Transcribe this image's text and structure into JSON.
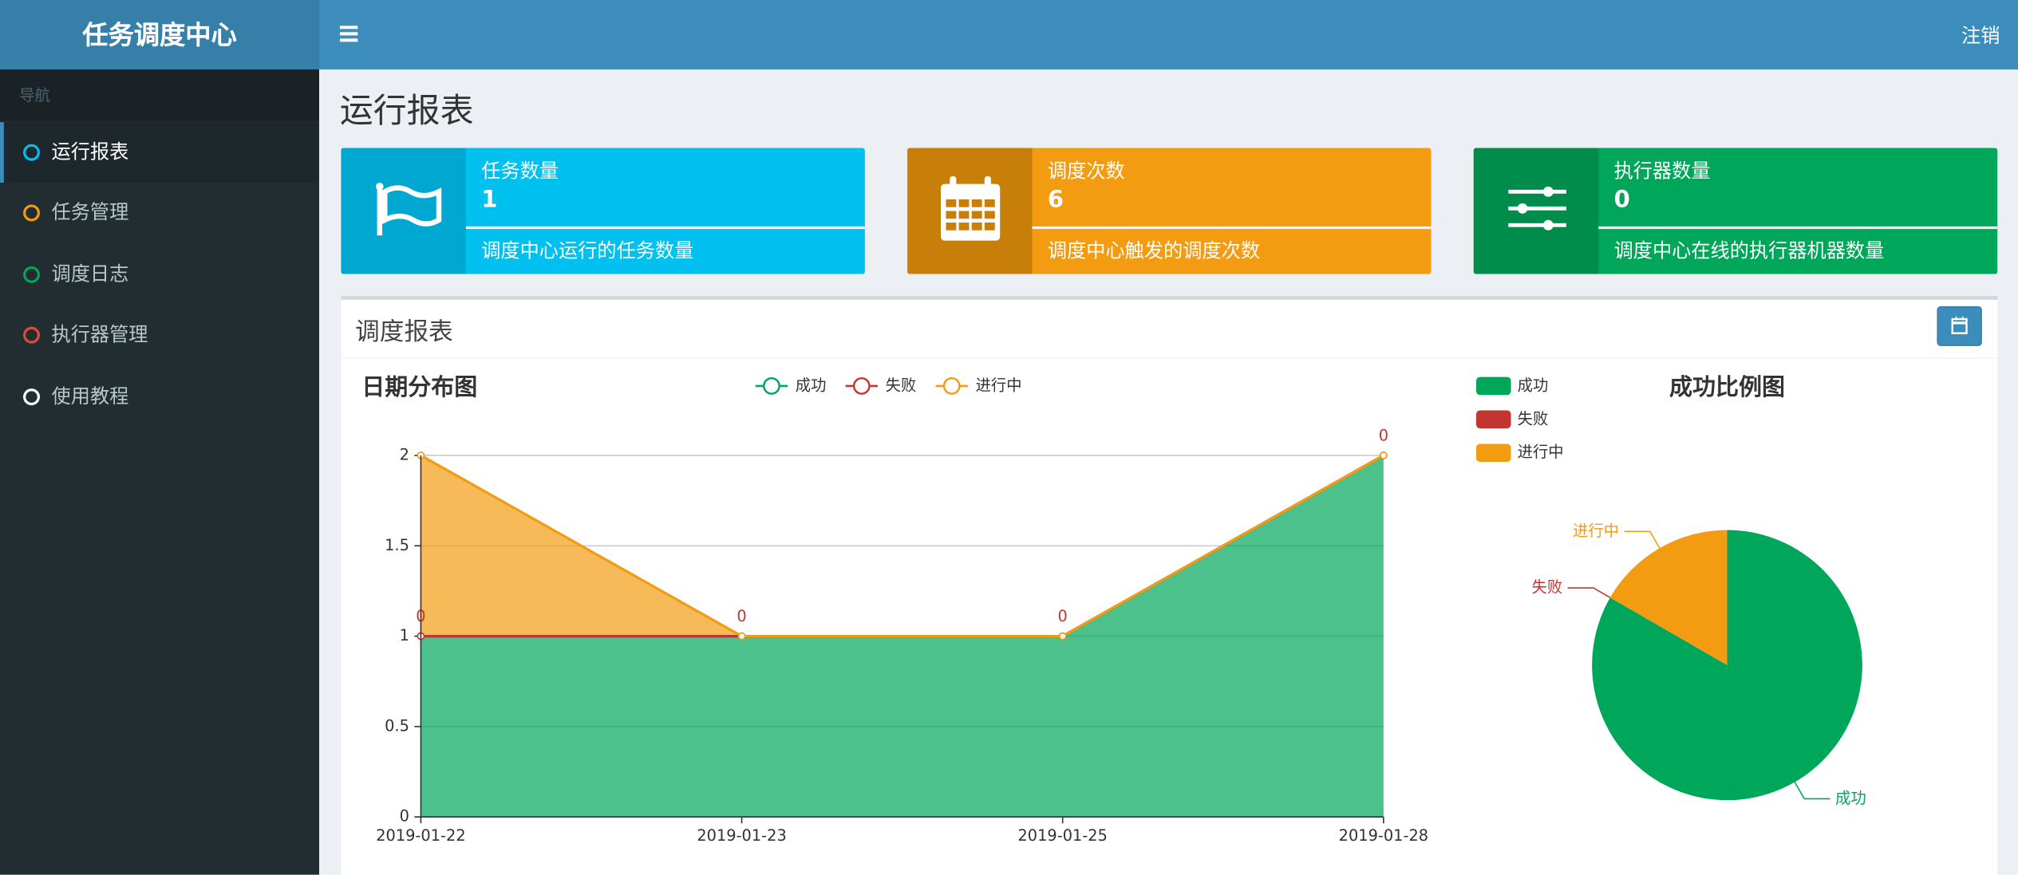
{
  "header": {
    "logo": "任务调度中心",
    "logout": "注销"
  },
  "sidebar": {
    "section": "导航",
    "items": [
      "运行报表",
      "任务管理",
      "调度日志",
      "执行器管理",
      "使用教程"
    ]
  },
  "page_title": "运行报表",
  "info_boxes": [
    {
      "title": "任务数量",
      "value": 1,
      "description": "调度中心运行的任务数量"
    },
    {
      "title": "调度次数",
      "value": 6,
      "description": "调度中心触发的调度次数"
    },
    {
      "title": "执行器数量",
      "value": 0,
      "description": "调度中心在线的执行器机器数量"
    }
  ],
  "report": {
    "title": "调度报表"
  },
  "chart_data": [
    {
      "type": "line",
      "stacked": true,
      "area": true,
      "title": "日期分布图",
      "categories": [
        "2019-01-22",
        "2019-01-23",
        "2019-01-25",
        "2019-01-28"
      ],
      "series": [
        {
          "name": "成功",
          "color": "#00a65a",
          "values": [
            1,
            1,
            1,
            2
          ]
        },
        {
          "name": "失败",
          "color": "#c23632",
          "values": [
            0,
            0,
            0,
            0
          ],
          "show_labels": true
        },
        {
          "name": "进行中",
          "color": "#f39c12",
          "values": [
            1,
            0,
            0,
            0
          ]
        }
      ],
      "ylim": [
        0,
        2
      ],
      "yticks": [
        0,
        0.5,
        1,
        1.5,
        2
      ],
      "grid": true,
      "legend": "top"
    },
    {
      "type": "pie",
      "title": "成功比例图",
      "categories": [
        "成功",
        "失败",
        "进行中"
      ],
      "values": [
        5,
        0,
        1
      ],
      "colors": [
        "#00a65a",
        "#c23632",
        "#f39c12"
      ],
      "legend": "top-left"
    }
  ]
}
